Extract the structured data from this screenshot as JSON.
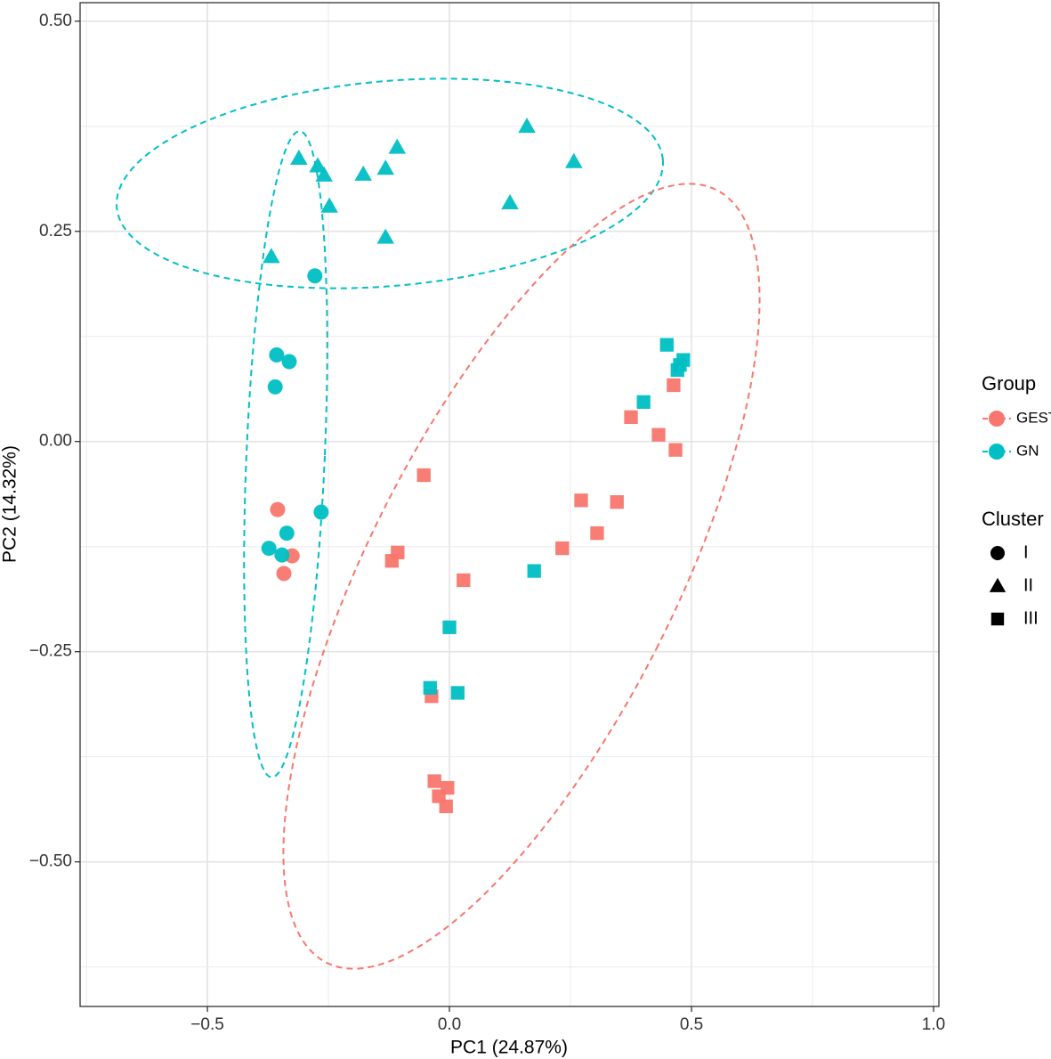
{
  "chart_data": {
    "type": "scatter",
    "xlabel": "PC1 (24.87%)",
    "ylabel": "PC2 (14.32%)",
    "xlim": [
      -0.763,
      1.011
    ],
    "ylim": [
      -0.672,
      0.522
    ],
    "xticks": [
      {
        "value": -0.5,
        "label": "−0.5"
      },
      {
        "value": 0,
        "label": "0.0"
      },
      0.5,
      {
        "value": 1,
        "label": "1.0"
      }
    ],
    "yticks": [
      {
        "value": -0.5,
        "label": "−0.50"
      },
      {
        "value": -0.25,
        "label": "−0.25"
      },
      {
        "value": 0,
        "label": "0.00"
      },
      0.25,
      {
        "value": 0.5,
        "label": "0.50"
      }
    ],
    "grid": true,
    "legend_title": "Group",
    "cluster_title": "Cluster",
    "clusters": [
      {
        "name": "I",
        "shape": "circle"
      },
      {
        "name": "II",
        "shape": "triangle"
      },
      {
        "name": "III",
        "shape": "square"
      }
    ],
    "series": [
      {
        "name": "GEST",
        "color": "#F8766D",
        "x": [
          -0.355,
          -0.325,
          -0.342,
          0.463,
          0.375,
          0.432,
          0.467,
          -0.053,
          0.272,
          0.346,
          0.305,
          0.233,
          -0.107,
          -0.119,
          0.029,
          -0.037,
          -0.031,
          -0.004,
          -0.022,
          -0.007
        ],
        "values": [
          -0.081,
          -0.136,
          -0.157,
          0.067,
          0.029,
          0.008,
          -0.01,
          -0.04,
          -0.07,
          -0.072,
          -0.109,
          -0.127,
          -0.132,
          -0.142,
          -0.165,
          -0.303,
          -0.404,
          -0.412,
          -0.422,
          -0.434
        ],
        "cluster": [
          "I",
          "I",
          "I",
          "III",
          "III",
          "III",
          "III",
          "III",
          "III",
          "III",
          "III",
          "III",
          "III",
          "III",
          "III",
          "III",
          "III",
          "III",
          "III",
          "III"
        ]
      },
      {
        "name": "GN",
        "color": "#00BFC4",
        "x": [
          -0.311,
          -0.272,
          -0.259,
          -0.248,
          -0.368,
          -0.178,
          -0.132,
          -0.108,
          -0.132,
          0.16,
          0.257,
          0.125,
          -0.278,
          -0.357,
          -0.331,
          -0.36,
          -0.265,
          -0.336,
          -0.373,
          -0.346,
          0.449,
          0.483,
          0.476,
          0.471,
          0.401,
          0.175,
          0.0,
          -0.04,
          0.017
        ],
        "values": [
          0.337,
          0.328,
          0.317,
          0.28,
          0.22,
          0.318,
          0.325,
          0.35,
          0.243,
          0.375,
          0.333,
          0.284,
          0.197,
          0.103,
          0.095,
          0.065,
          -0.084,
          -0.109,
          -0.127,
          -0.135,
          0.115,
          0.097,
          0.091,
          0.085,
          0.047,
          -0.154,
          -0.221,
          -0.293,
          -0.299
        ],
        "cluster": [
          "II",
          "II",
          "II",
          "II",
          "II",
          "II",
          "II",
          "II",
          "II",
          "II",
          "II",
          "II",
          "I",
          "I",
          "I",
          "I",
          "I",
          "I",
          "I",
          "I",
          "III",
          "III",
          "III",
          "III",
          "III",
          "III",
          "III",
          "III",
          "III"
        ]
      }
    ]
  }
}
